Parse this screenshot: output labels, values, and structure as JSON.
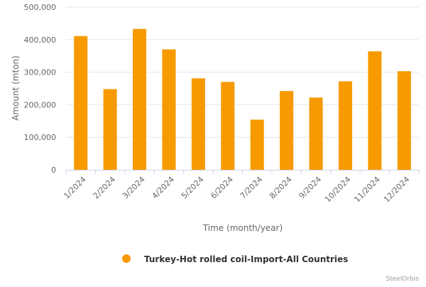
{
  "chart_data": {
    "type": "bar",
    "title": "",
    "xlabel": "Time (month/year)",
    "ylabel": "Amount (mton)",
    "categories": [
      "1/2024",
      "2/2024",
      "3/2024",
      "4/2024",
      "5/2024",
      "6/2024",
      "7/2024",
      "8/2024",
      "9/2024",
      "10/2024",
      "11/2024",
      "12/2024"
    ],
    "series": [
      {
        "name": "Turkey-Hot rolled coil-Import-All Countries",
        "color": "#f79a00",
        "values": [
          411000,
          248000,
          433000,
          370000,
          281000,
          270000,
          154000,
          242000,
          222000,
          272000,
          364000,
          303000
        ]
      }
    ],
    "ylim": [
      0,
      500000
    ],
    "yticks": [
      0,
      100000,
      200000,
      300000,
      400000,
      500000
    ],
    "ytick_labels": [
      "0",
      "100,000",
      "200,000",
      "300,000",
      "400,000",
      "500,000"
    ],
    "grid": true,
    "legend_position": "bottom-center"
  },
  "credit": "SteelOrbis"
}
